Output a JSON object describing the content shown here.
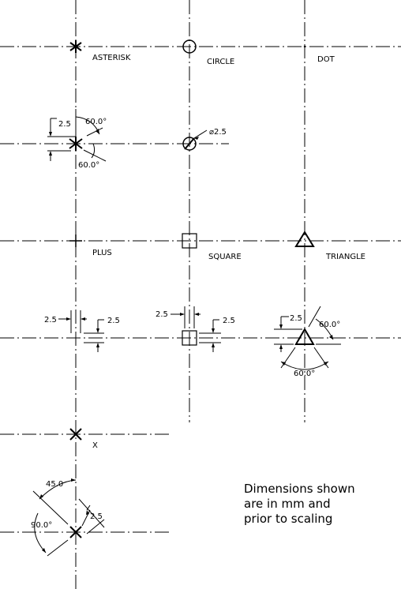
{
  "labels": {
    "asterisk": "ASTERISK",
    "circle": "CIRCLE",
    "dot": "DOT",
    "plus": "PLUS",
    "square": "SQUARE",
    "triangle": "TRIANGLE",
    "x": "X"
  },
  "dimensions": {
    "asterisk_size": "2.5",
    "asterisk_angle_top": "60.0°",
    "asterisk_angle_bottom": "60.0°",
    "circle_diameter": "⌀2.5",
    "plus_size_left": "2.5",
    "plus_size_right": "2.5",
    "square_size_left": "2.5",
    "square_size_right": "2.5",
    "triangle_size": "2.5",
    "triangle_angle_right": "60.0°",
    "triangle_angle_bottom": "60.0°",
    "x_angle_top": "45.0",
    "x_angle_left": "90.0°",
    "x_size": "2.5"
  },
  "note": {
    "line1": "Dimensions shown",
    "line2": "are in mm and",
    "line3": "prior to scaling"
  }
}
